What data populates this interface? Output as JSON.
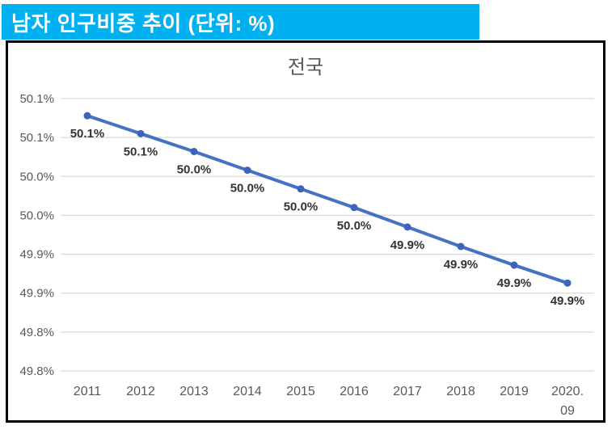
{
  "header": {
    "title": "남자 인구비중 추이 (단위: %)",
    "bg_color": "#00B0F0",
    "text_color": "#ffffff"
  },
  "chart_data": {
    "type": "line",
    "title": "전국",
    "categories": [
      "2011",
      "2012",
      "2013",
      "2014",
      "2015",
      "2016",
      "2017",
      "2018",
      "2019",
      "2020.09"
    ],
    "x_tick_display": [
      [
        "2011"
      ],
      [
        "2012"
      ],
      [
        "2013"
      ],
      [
        "2014"
      ],
      [
        "2015"
      ],
      [
        "2016"
      ],
      [
        "2017"
      ],
      [
        "2018"
      ],
      [
        "2019"
      ],
      [
        "2020.",
        "09"
      ]
    ],
    "series": [
      {
        "name": "남자 인구비중",
        "values": [
          50.078,
          50.055,
          50.032,
          50.008,
          49.984,
          49.96,
          49.935,
          49.91,
          49.886,
          49.863
        ],
        "data_labels": [
          "50.1%",
          "50.1%",
          "50.0%",
          "50.0%",
          "50.0%",
          "50.0%",
          "49.9%",
          "49.9%",
          "49.9%",
          "49.9%"
        ]
      }
    ],
    "y_tick_values": [
      50.1,
      50.05,
      50.0,
      49.95,
      49.9,
      49.85,
      49.8,
      49.75
    ],
    "y_tick_labels": [
      "50.1%",
      "50.1%",
      "50.0%",
      "50.0%",
      "49.9%",
      "49.9%",
      "49.8%",
      "49.8%"
    ],
    "ylim": [
      49.75,
      50.1
    ],
    "xlabel": "",
    "ylabel": "",
    "grid": true,
    "legend": "none",
    "colors": {
      "line": "#4472C4",
      "marker": "#3C64B8",
      "gridline": "#D9D9D9",
      "axis_text": "#595959",
      "data_label_text": "#333333",
      "title_text": "#595959"
    }
  }
}
